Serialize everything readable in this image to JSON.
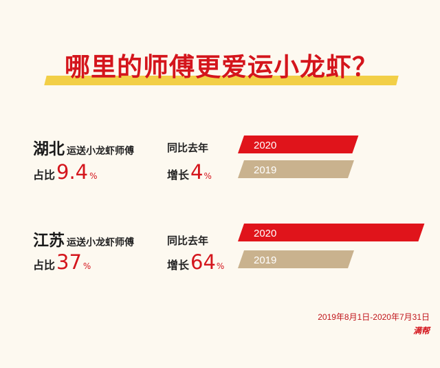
{
  "title": "哪里的师傅更爱运小龙虾？",
  "colors": {
    "accent": "#d4151c",
    "bar_2020": "#e0141b",
    "bar_2019": "#c9b28e",
    "highlight": "#f2cf47",
    "background": "#fdf9f0"
  },
  "yoy_label": "同比去年",
  "share_label": "占比",
  "growth_label": "增长",
  "unit": "%",
  "regions": [
    {
      "name": "湖北",
      "sub": "运送小龙虾师傅",
      "share": "9.4",
      "growth": "4"
    },
    {
      "name": "江苏",
      "sub": "运送小龙虾师傅",
      "share": "37",
      "growth": "64"
    }
  ],
  "chart_data": {
    "type": "bar",
    "orientation": "horizontal",
    "series_names": [
      "2020",
      "2019"
    ],
    "groups": [
      {
        "region": "湖北",
        "values": {
          "2020": 1.04,
          "2019": 1.0
        }
      },
      {
        "region": "江苏",
        "values": {
          "2020": 1.64,
          "2019": 1.0
        }
      }
    ]
  },
  "footer": {
    "date_range": "2019年8月1日-2020年7月31日",
    "logo": "满帮"
  }
}
